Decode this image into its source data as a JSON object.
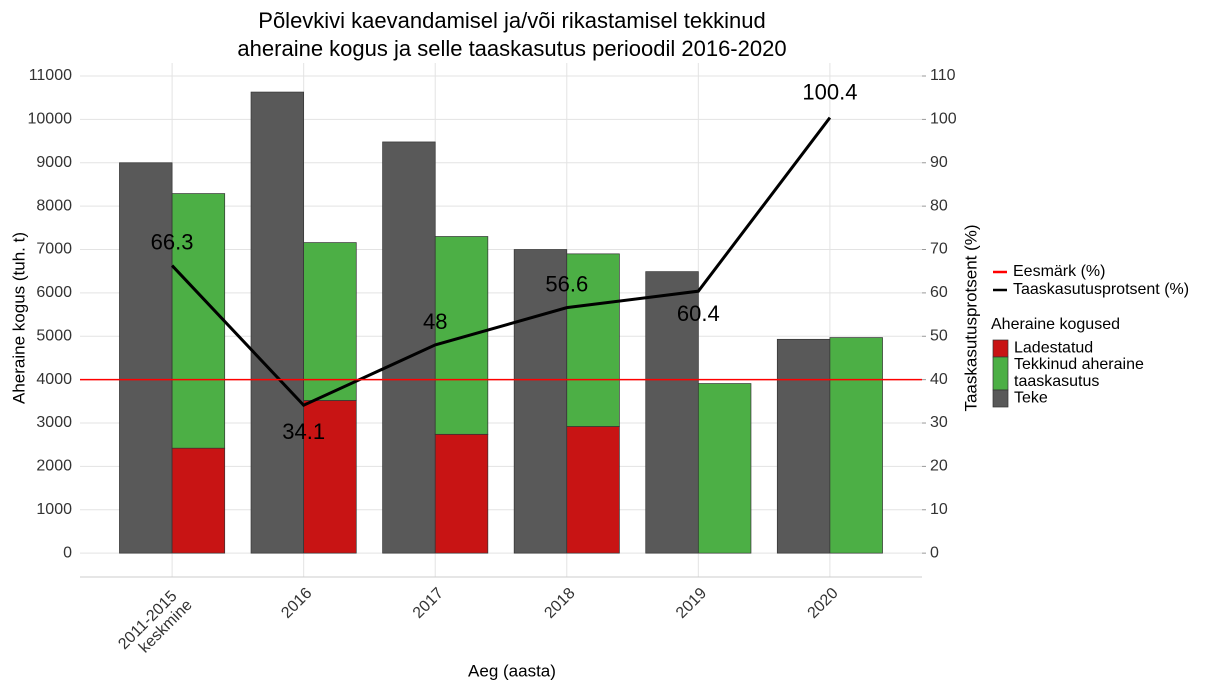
{
  "chart_data": {
    "type": "bar",
    "title": [
      "Põlevkivi kaevandamisel ja/või rikastamisel tekkinud",
      "aheraine kogus ja selle taaskasutus perioodil 2016-2020"
    ],
    "xlabel": "Aeg (aasta)",
    "ylabel": "Aheraine kogus (tuh. t)",
    "y2label": "Taaskasutusprotsent (%)",
    "categories": [
      "2011-2015 keskmine",
      "2016",
      "2017",
      "2018",
      "2019",
      "2020"
    ],
    "series": [
      {
        "name": "Teke",
        "color": "#595959",
        "values": [
          9000,
          10630,
          9480,
          7000,
          6490,
          4930
        ]
      },
      {
        "name": "Ladestatud",
        "color": "#c81414",
        "stack": "kasutus",
        "values": [
          2420,
          3520,
          2740,
          2920,
          0,
          0
        ]
      },
      {
        "name": "Tekkinud aheraine taaskasutus",
        "color": "#4caf45",
        "stack": "kasutus",
        "values": [
          5870,
          3640,
          4560,
          3980,
          3910,
          4970
        ]
      },
      {
        "name": "Taaskasutusprotsent (%)",
        "type": "line",
        "axis": "y2",
        "color": "#000000",
        "values": [
          66.3,
          34.1,
          48,
          56.6,
          60.4,
          100.4
        ]
      }
    ],
    "target": {
      "name": "Eesmärk (%)",
      "value": 40,
      "axis": "y2",
      "color": "#ff0000"
    },
    "legend_title": "Aheraine kogused",
    "ylim": [
      -550,
      11300
    ],
    "yticks": [
      0,
      1000,
      2000,
      3000,
      4000,
      5000,
      6000,
      7000,
      8000,
      9000,
      10000,
      11000
    ],
    "y2lim": [
      -5.5,
      113
    ],
    "y2ticks": [
      0,
      10,
      20,
      30,
      40,
      50,
      60,
      70,
      80,
      90,
      100,
      110
    ],
    "grid": true,
    "legend": "right"
  }
}
